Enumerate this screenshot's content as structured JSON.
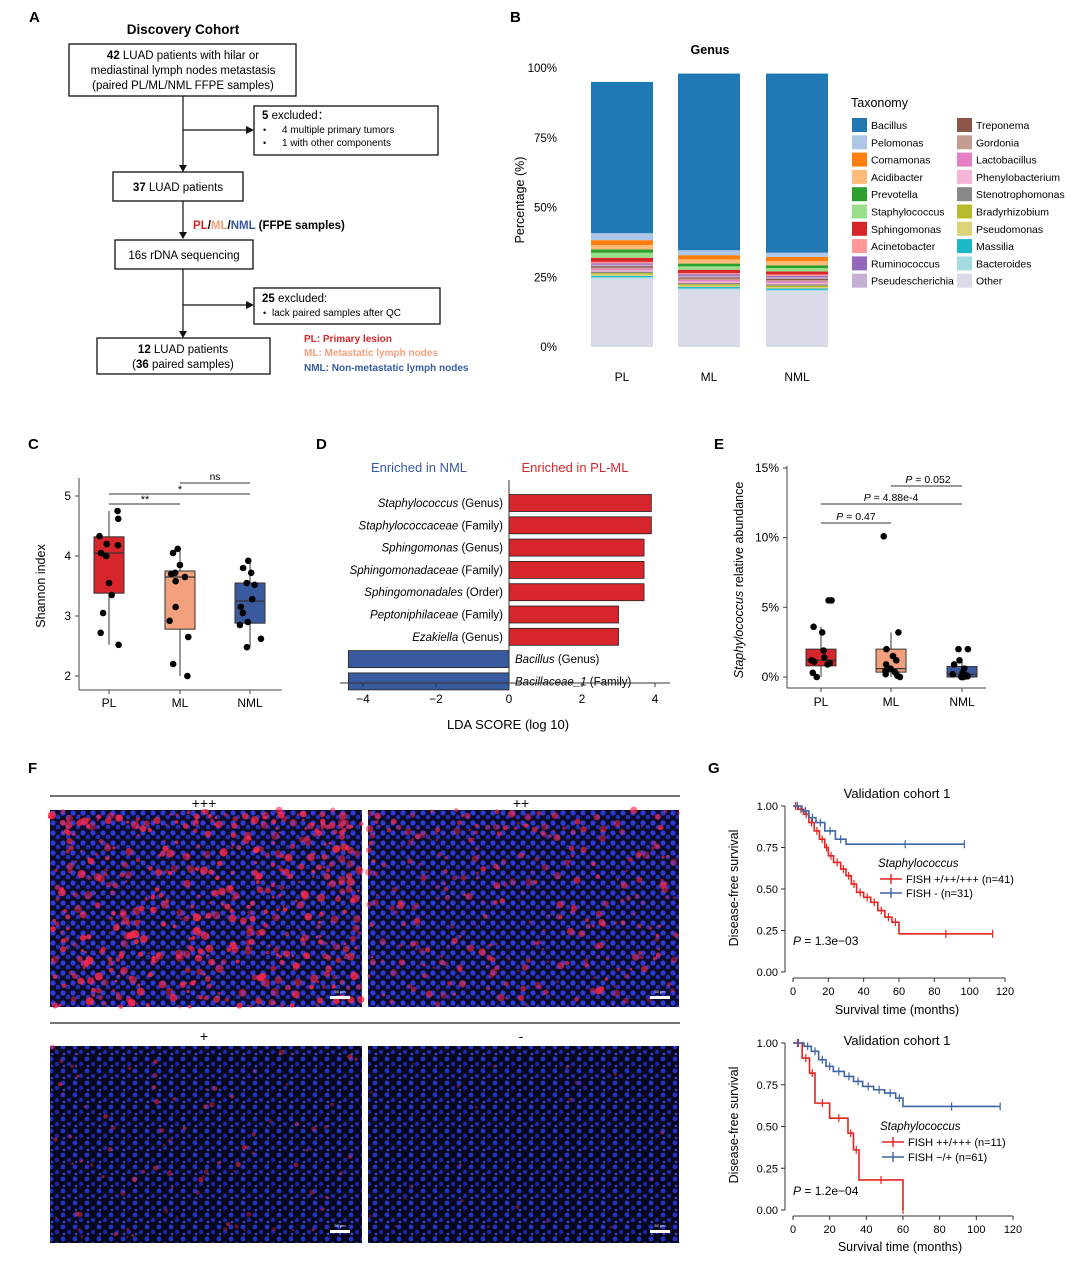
{
  "panel_letters": {
    "A": "A",
    "B": "B",
    "C": "C",
    "D": "D",
    "E": "E",
    "F": "F",
    "G": "G"
  },
  "colors": {
    "pl": "#d7262b",
    "ml": "#f2a07e",
    "nml": "#3a5aa0",
    "grey_text": "#333333",
    "green": "#5a9e3c"
  },
  "flowchart": {
    "title": "Discovery Cohort",
    "box1": {
      "line1_num": "42",
      "line1_rest": " LUAD patients with hilar or",
      "line2": "mediastinal lymph nodes metastasis",
      "line3": "(paired PL/ML/NML FFPE samples)"
    },
    "excl1": {
      "head_num": "5",
      "head_rest": " excluded：",
      "items": [
        "4 multiple primary tumors",
        "1 with other components"
      ]
    },
    "box2": {
      "num": "37",
      "rest": " LUAD patients"
    },
    "ffpe": {
      "pl": "PL",
      "sep1": "/",
      "ml": "ML",
      "sep2": "/",
      "nml": "NML",
      "rest": " (FFPE samples)"
    },
    "box3": "16s rDNA sequencing",
    "excl2": {
      "head_num": "25",
      "head_rest": " excluded:",
      "items": [
        "lack paired samples after QC"
      ]
    },
    "box4": {
      "line1_num": "12",
      "line1_rest": " LUAD patients",
      "line2_open": "(",
      "line2_num": "36",
      "line2_rest": " paired samples)"
    },
    "legend": [
      "PL: Primary lesion",
      "ML: Metastatic lymph nodes",
      "NML: Non-metastatic lymph nodes"
    ],
    "bullet": "•"
  },
  "genus_chart": {
    "title": "Genus",
    "ylabel": "Percentage (%)",
    "yticks": [
      "0%",
      "25%",
      "50%",
      "75%",
      "100%"
    ],
    "legend_title": "Taxonomy"
  },
  "shannon_chart": {
    "ylabel": "Shannon index",
    "yticks": [
      "2",
      "3",
      "4",
      "5"
    ],
    "sig": [
      "**",
      "*",
      "ns"
    ]
  },
  "lda_chart": {
    "left_header": "Enriched in NML",
    "right_header": "Enriched in PL-ML",
    "xlabel": "LDA SCORE (log 10)",
    "xticks": [
      "−4",
      "−2",
      "0",
      "2",
      "4"
    ]
  },
  "staph_chart": {
    "ylabel_italic": "Staphylococcus",
    "ylabel_rest": " relative abundance",
    "yticks": [
      "0%",
      "5%",
      "10%",
      "15%"
    ],
    "pvals": [
      {
        "p": "P",
        "v": " = 0.47"
      },
      {
        "p": "P",
        "v": " = 4.88e-4"
      },
      {
        "p": "P",
        "v": " = 0.052"
      }
    ]
  },
  "fish_panel": {
    "labels": [
      "+++",
      "++",
      "+",
      "-"
    ],
    "scale_text": "50 μm"
  },
  "km_charts": [
    {
      "title": "Validation cohort 1",
      "ylabel": "Disease-free survival",
      "xlabel": "Survival time (months)",
      "yticks": [
        "0.00",
        "0.25",
        "0.50",
        "0.75",
        "1.00"
      ],
      "xticks": [
        "0",
        "20",
        "40",
        "60",
        "80",
        "100",
        "120"
      ],
      "legend_title": "Staphylococcus",
      "legend": [
        "FISH +/++/+++ (n=41)",
        "FISH - (n=31)"
      ],
      "p_label": "P",
      "p_value": " = 1.3e−03"
    },
    {
      "title": "Validation cohort 1",
      "ylabel": "Disease-free survival",
      "xlabel": "Survival time (months)",
      "yticks": [
        "0.00",
        "0.25",
        "0.50",
        "0.75",
        "1.00"
      ],
      "xticks": [
        "0",
        "20",
        "40",
        "60",
        "80",
        "100",
        "120"
      ],
      "legend_title": "Staphylococcus",
      "legend": [
        "FISH ++/+++ (n=11)",
        "FISH −/+ (n=61)"
      ],
      "p_label": "P",
      "p_value": " = 1.2e−04"
    }
  ],
  "chart_data": [
    {
      "type": "bar",
      "title": "Genus",
      "stacked": true,
      "categories": [
        "PL",
        "ML",
        "NML"
      ],
      "ylabel": "Percentage (%)",
      "ylim": [
        0,
        100
      ],
      "series": [
        {
          "name": "Other",
          "color": "#d9dbe8",
          "values": [
            24.5,
            20.5,
            20.0
          ]
        },
        {
          "name": "Bacteroides",
          "color": "#a6dbe2",
          "values": [
            0.5,
            0.5,
            0.5
          ]
        },
        {
          "name": "Massilia",
          "color": "#1ab8c8",
          "values": [
            0.5,
            0.5,
            0.5
          ]
        },
        {
          "name": "Pseudomonas",
          "color": "#dad37a",
          "values": [
            0.5,
            0.5,
            0.5
          ]
        },
        {
          "name": "Bradyrhizobium",
          "color": "#b8bc2a",
          "values": [
            0.5,
            0.5,
            0.5
          ]
        },
        {
          "name": "Stenotrophomonas",
          "color": "#888888",
          "values": [
            0.5,
            0.5,
            0.5
          ]
        },
        {
          "name": "Phenylobacterium",
          "color": "#f4b6d6",
          "values": [
            0.5,
            0.5,
            0.5
          ]
        },
        {
          "name": "Lactobacillus",
          "color": "#e57ec4",
          "values": [
            0.5,
            0.5,
            0.5
          ]
        },
        {
          "name": "Gordonia",
          "color": "#c49c94",
          "values": [
            0.5,
            0.5,
            0.5
          ]
        },
        {
          "name": "Treponema",
          "color": "#8c564b",
          "values": [
            0.5,
            0.5,
            0.5
          ]
        },
        {
          "name": "Pseudescherichia",
          "color": "#c5b0d5",
          "values": [
            0.5,
            0.5,
            0.5
          ]
        },
        {
          "name": "Ruminococcus",
          "color": "#9467bd",
          "values": [
            0.5,
            0.5,
            0.5
          ]
        },
        {
          "name": "Acinetobacter",
          "color": "#ff9896",
          "values": [
            0.5,
            0.5,
            0.5
          ]
        },
        {
          "name": "Sphingomonas",
          "color": "#d62728",
          "values": [
            1.5,
            1.2,
            1.1
          ]
        },
        {
          "name": "Staphylococcus",
          "color": "#98df8a",
          "values": [
            1.8,
            1.2,
            1.2
          ]
        },
        {
          "name": "Prevotella",
          "color": "#2ca02c",
          "values": [
            1.2,
            1.0,
            1.0
          ]
        },
        {
          "name": "Acidibacter",
          "color": "#ffbb78",
          "values": [
            1.5,
            1.5,
            1.5
          ]
        },
        {
          "name": "Comamonas",
          "color": "#ff7f0e",
          "values": [
            1.8,
            1.5,
            1.5
          ]
        },
        {
          "name": "Pelomonas",
          "color": "#aec7e8",
          "values": [
            2.5,
            1.8,
            1.5
          ]
        },
        {
          "name": "Bacillus",
          "color": "#1f77b4",
          "values": [
            54.2,
            63.3,
            64.2
          ]
        }
      ]
    },
    {
      "type": "box",
      "ylabel": "Shannon index",
      "categories": [
        "PL",
        "ML",
        "NML"
      ],
      "ylim": [
        1.8,
        5.3
      ],
      "boxes": [
        {
          "q1": 3.38,
          "median": 4.05,
          "q3": 4.32,
          "min": 2.52,
          "max": 4.75,
          "points": [
            4.75,
            4.62,
            4.33,
            4.2,
            4.18,
            4.05,
            4.0,
            3.55,
            3.35,
            3.05,
            2.72,
            2.52
          ]
        },
        {
          "q1": 2.78,
          "median": 3.65,
          "q3": 3.75,
          "min": 2.0,
          "max": 4.12,
          "points": [
            4.12,
            4.05,
            3.85,
            3.72,
            3.7,
            3.65,
            3.58,
            3.15,
            2.92,
            2.65,
            2.2,
            2.0
          ]
        },
        {
          "q1": 2.88,
          "median": 3.25,
          "q3": 3.55,
          "min": 2.48,
          "max": 3.92,
          "points": [
            3.92,
            3.8,
            3.72,
            3.55,
            3.52,
            3.28,
            3.15,
            3.05,
            2.9,
            2.85,
            2.62,
            2.48
          ]
        }
      ]
    },
    {
      "type": "bar",
      "orientation": "horizontal",
      "xlabel": "LDA SCORE (log 10)",
      "xlim": [
        -4.5,
        4.5
      ],
      "features": [
        {
          "name": "Staphylococcus",
          "rank": " (Genus)",
          "value": 3.9
        },
        {
          "name": "Staphylococcaceae",
          "rank": " (Family)",
          "value": 3.9
        },
        {
          "name": "Sphingomonas",
          "rank": " (Genus)",
          "value": 3.7
        },
        {
          "name": "Sphingomonadaceae",
          "rank": " (Family)",
          "value": 3.7
        },
        {
          "name": "Sphingomonadales",
          "rank": " (Order)",
          "value": 3.7
        },
        {
          "name": "Peptoniphilaceae",
          "rank": " (Family)",
          "value": 3.0
        },
        {
          "name": "Ezakiella",
          "rank": " (Genus)",
          "value": 3.0
        },
        {
          "name": "Bacillus",
          "rank": " (Genus)",
          "value": -4.4
        },
        {
          "name": "Bacillaceae_1",
          "rank": " (Family)",
          "value": -4.4
        }
      ]
    },
    {
      "type": "box",
      "ylabel": "Staphylococcus relative abundance",
      "categories": [
        "PL",
        "ML",
        "NML"
      ],
      "ylim": [
        0,
        15
      ],
      "boxes": [
        {
          "q1": 0.8,
          "median": 1.2,
          "q3": 2.0,
          "min": 0.0,
          "max": 3.6,
          "points": [
            5.5,
            5.5,
            3.6,
            3.2,
            1.9,
            1.4,
            1.2,
            1.1,
            1.0,
            0.9,
            0.3,
            0.0
          ]
        },
        {
          "q1": 0.35,
          "median": 0.6,
          "q3": 2.0,
          "min": 0.0,
          "max": 3.2,
          "points": [
            10.1,
            3.2,
            2.0,
            1.5,
            1.2,
            0.9,
            0.6,
            0.45,
            0.35,
            0.2,
            0.1,
            0.0
          ]
        },
        {
          "q1": 0.0,
          "median": 0.2,
          "q3": 0.75,
          "min": 0.0,
          "max": 1.2,
          "points": [
            2.0,
            2.0,
            1.2,
            0.9,
            0.6,
            0.3,
            0.2,
            0.1,
            0.05,
            0.0,
            0.0,
            0.0
          ]
        }
      ]
    },
    {
      "type": "line",
      "title": "Validation cohort 1",
      "xlabel": "Survival time (months)",
      "ylabel": "Disease-free survival",
      "xlim": [
        0,
        120
      ],
      "ylim": [
        0,
        1
      ],
      "series": [
        {
          "name": "FISH +/++/+++ (n=41)",
          "color": "#e8231f",
          "steps": [
            [
              0,
              1
            ],
            [
              3,
              0.98
            ],
            [
              6,
              0.95
            ],
            [
              9,
              0.9
            ],
            [
              12,
              0.85
            ],
            [
              15,
              0.8
            ],
            [
              18,
              0.75
            ],
            [
              20,
              0.7
            ],
            [
              23,
              0.66
            ],
            [
              27,
              0.62
            ],
            [
              30,
              0.58
            ],
            [
              33,
              0.53
            ],
            [
              36,
              0.48
            ],
            [
              40,
              0.45
            ],
            [
              44,
              0.42
            ],
            [
              48,
              0.37
            ],
            [
              52,
              0.33
            ],
            [
              56,
              0.3
            ],
            [
              60,
              0.23
            ],
            [
              113,
              0.23
            ]
          ]
        },
        {
          "name": "FISH - (n=31)",
          "color": "#3f65a5",
          "steps": [
            [
              0,
              1
            ],
            [
              5,
              0.97
            ],
            [
              9,
              0.93
            ],
            [
              13,
              0.9
            ],
            [
              18,
              0.85
            ],
            [
              24,
              0.8
            ],
            [
              30,
              0.77
            ],
            [
              97,
              0.77
            ]
          ]
        }
      ]
    },
    {
      "type": "line",
      "title": "Validation cohort 1",
      "xlabel": "Survival time (months)",
      "ylabel": "Disease-free survival",
      "xlim": [
        0,
        120
      ],
      "ylim": [
        0,
        1
      ],
      "series": [
        {
          "name": "FISH ++/+++ (n=11)",
          "color": "#e8231f",
          "steps": [
            [
              0,
              1
            ],
            [
              5,
              0.91
            ],
            [
              9,
              0.82
            ],
            [
              12,
              0.64
            ],
            [
              20,
              0.55
            ],
            [
              30,
              0.46
            ],
            [
              33,
              0.36
            ],
            [
              36,
              0.18
            ],
            [
              60,
              0.0
            ]
          ]
        },
        {
          "name": "FISH −/+ (n=61)",
          "color": "#3f65a5",
          "steps": [
            [
              0,
              1
            ],
            [
              6,
              0.98
            ],
            [
              10,
              0.95
            ],
            [
              14,
              0.9
            ],
            [
              18,
              0.86
            ],
            [
              22,
              0.83
            ],
            [
              28,
              0.8
            ],
            [
              33,
              0.77
            ],
            [
              38,
              0.74
            ],
            [
              44,
              0.72
            ],
            [
              50,
              0.7
            ],
            [
              56,
              0.67
            ],
            [
              60,
              0.62
            ],
            [
              113,
              0.62
            ]
          ]
        }
      ]
    }
  ]
}
